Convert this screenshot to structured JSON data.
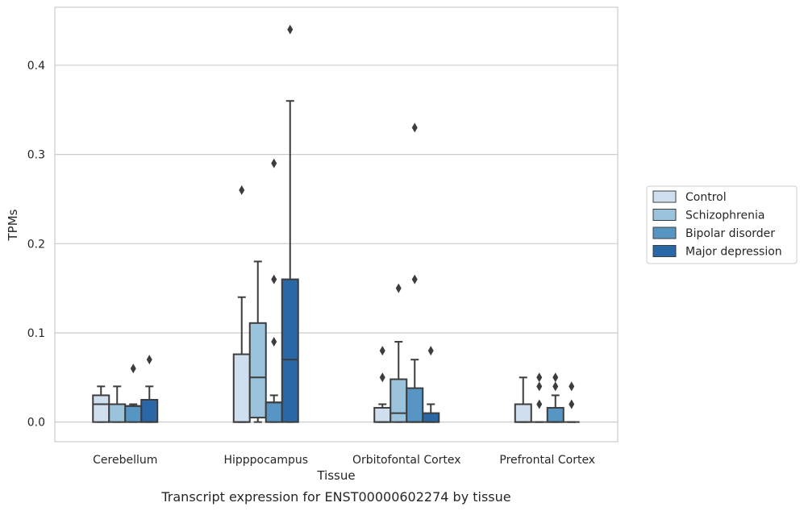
{
  "chart_data": {
    "type": "boxplot",
    "title": "",
    "caption": "Transcript expression for ENST00000602274 by tissue",
    "xlabel": "Tissue",
    "ylabel": "TPMs",
    "ylim": [
      -0.022,
      0.465
    ],
    "yticks": [
      0.0,
      0.1,
      0.2,
      0.3,
      0.4
    ],
    "ytick_labels": [
      "0.0",
      "0.1",
      "0.2",
      "0.3",
      "0.4"
    ],
    "grid": "horizontal",
    "legend_position": "right",
    "categories": [
      "Cerebellum",
      "Hipppocampus",
      "Orbitofontal Cortex",
      "Prefrontal Cortex"
    ],
    "series": [
      {
        "name": "Control",
        "color": "#cfdff0",
        "boxes": [
          {
            "q1": 0.0,
            "median": 0.02,
            "q3": 0.03,
            "whisker_low": 0.0,
            "whisker_high": 0.04,
            "outliers": []
          },
          {
            "q1": 0.0,
            "median": 0.0,
            "q3": 0.076,
            "whisker_low": 0.0,
            "whisker_high": 0.14,
            "outliers": [
              0.26
            ]
          },
          {
            "q1": 0.0,
            "median": 0.0,
            "q3": 0.016,
            "whisker_low": 0.0,
            "whisker_high": 0.02,
            "outliers": [
              0.05,
              0.08
            ]
          },
          {
            "q1": 0.0,
            "median": 0.0,
            "q3": 0.02,
            "whisker_low": 0.0,
            "whisker_high": 0.05,
            "outliers": []
          }
        ]
      },
      {
        "name": "Schizophrenia",
        "color": "#9bc3dc",
        "boxes": [
          {
            "q1": 0.0,
            "median": 0.02,
            "q3": 0.02,
            "whisker_low": 0.0,
            "whisker_high": 0.04,
            "outliers": []
          },
          {
            "q1": 0.005,
            "median": 0.05,
            "q3": 0.111,
            "whisker_low": 0.0,
            "whisker_high": 0.18,
            "outliers": []
          },
          {
            "q1": 0.0,
            "median": 0.01,
            "q3": 0.048,
            "whisker_low": 0.0,
            "whisker_high": 0.09,
            "outliers": [
              0.15
            ]
          },
          {
            "q1": 0.0,
            "median": 0.0,
            "q3": 0.0,
            "whisker_low": 0.0,
            "whisker_high": 0.0,
            "outliers": [
              0.02,
              0.04,
              0.05
            ]
          }
        ]
      },
      {
        "name": "Bipolar disorder",
        "color": "#5796c4",
        "boxes": [
          {
            "q1": 0.0,
            "median": 0.018,
            "q3": 0.018,
            "whisker_low": 0.0,
            "whisker_high": 0.02,
            "outliers": [
              0.06
            ]
          },
          {
            "q1": 0.0,
            "median": 0.022,
            "q3": 0.022,
            "whisker_low": 0.0,
            "whisker_high": 0.03,
            "outliers": [
              0.09,
              0.16,
              0.29
            ]
          },
          {
            "q1": 0.0,
            "median": 0.0,
            "q3": 0.038,
            "whisker_low": 0.0,
            "whisker_high": 0.07,
            "outliers": [
              0.16,
              0.33
            ]
          },
          {
            "q1": 0.0,
            "median": 0.0,
            "q3": 0.016,
            "whisker_low": 0.0,
            "whisker_high": 0.03,
            "outliers": [
              0.04,
              0.05
            ]
          }
        ]
      },
      {
        "name": "Major depression",
        "color": "#2a67a6",
        "boxes": [
          {
            "q1": 0.0,
            "median": 0.0,
            "q3": 0.025,
            "whisker_low": 0.0,
            "whisker_high": 0.04,
            "outliers": [
              0.07
            ]
          },
          {
            "q1": 0.0,
            "median": 0.07,
            "q3": 0.16,
            "whisker_low": 0.0,
            "whisker_high": 0.36,
            "outliers": [
              0.44
            ]
          },
          {
            "q1": 0.0,
            "median": 0.0,
            "q3": 0.01,
            "whisker_low": 0.0,
            "whisker_high": 0.02,
            "outliers": [
              0.08
            ]
          },
          {
            "q1": 0.0,
            "median": 0.0,
            "q3": 0.0,
            "whisker_low": 0.0,
            "whisker_high": 0.0,
            "outliers": [
              0.02,
              0.04
            ]
          }
        ]
      }
    ]
  }
}
